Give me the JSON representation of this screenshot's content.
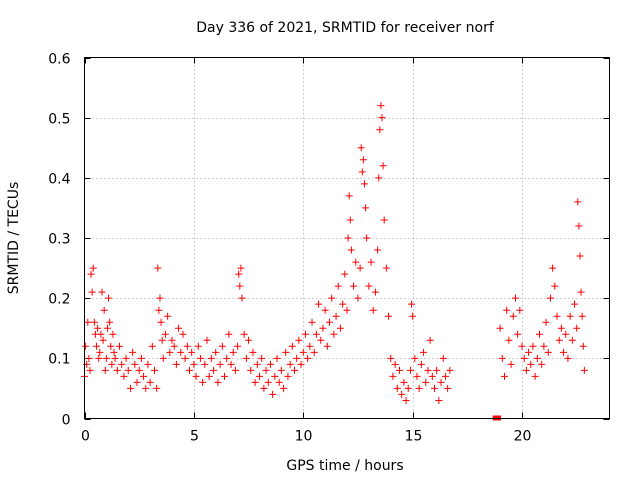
{
  "chart_data": {
    "type": "scatter",
    "title": "Day 336 of 2021, SRMTID for receiver norf",
    "xlabel": "GPS time / hours",
    "ylabel": "SRMTID / TECUs",
    "xlim": [
      0,
      24
    ],
    "ylim": [
      0,
      0.6
    ],
    "xticks": [
      0,
      5,
      10,
      15,
      20
    ],
    "xtick_labels": [
      "0",
      "5",
      "10",
      "15",
      "20"
    ],
    "yticks": [
      0,
      0.1,
      0.2,
      0.3,
      0.4,
      0.5,
      0.6
    ],
    "ytick_labels": [
      "0",
      "0.1",
      "0.2",
      "0.3",
      "0.4",
      "0.5",
      "0.6"
    ],
    "grid": true,
    "marker": "+",
    "color": "#ff0000",
    "series": [
      {
        "name": "SRMTID",
        "points": [
          [
            0.0,
            0.07
          ],
          [
            0.05,
            0.12
          ],
          [
            0.1,
            0.09
          ],
          [
            0.15,
            0.16
          ],
          [
            0.2,
            0.1
          ],
          [
            0.25,
            0.08
          ],
          [
            0.3,
            0.24
          ],
          [
            0.35,
            0.21
          ],
          [
            0.4,
            0.25
          ],
          [
            0.45,
            0.16
          ],
          [
            0.5,
            0.14
          ],
          [
            0.55,
            0.12
          ],
          [
            0.6,
            0.15
          ],
          [
            0.65,
            0.1
          ],
          [
            0.7,
            0.11
          ],
          [
            0.75,
            0.14
          ],
          [
            0.8,
            0.21
          ],
          [
            0.85,
            0.13
          ],
          [
            0.9,
            0.18
          ],
          [
            0.95,
            0.08
          ],
          [
            1.0,
            0.1
          ],
          [
            1.05,
            0.15
          ],
          [
            1.1,
            0.2
          ],
          [
            1.15,
            0.16
          ],
          [
            1.2,
            0.12
          ],
          [
            1.25,
            0.09
          ],
          [
            1.3,
            0.14
          ],
          [
            1.35,
            0.11
          ],
          [
            1.4,
            0.1
          ],
          [
            1.5,
            0.08
          ],
          [
            1.6,
            0.12
          ],
          [
            1.7,
            0.09
          ],
          [
            1.8,
            0.07
          ],
          [
            1.9,
            0.1
          ],
          [
            2.0,
            0.08
          ],
          [
            2.1,
            0.05
          ],
          [
            2.2,
            0.11
          ],
          [
            2.3,
            0.09
          ],
          [
            2.4,
            0.06
          ],
          [
            2.5,
            0.08
          ],
          [
            2.6,
            0.1
          ],
          [
            2.7,
            0.07
          ],
          [
            2.8,
            0.05
          ],
          [
            2.9,
            0.09
          ],
          [
            3.0,
            0.06
          ],
          [
            3.1,
            0.12
          ],
          [
            3.2,
            0.08
          ],
          [
            3.3,
            0.05
          ],
          [
            3.35,
            0.25
          ],
          [
            3.4,
            0.18
          ],
          [
            3.45,
            0.2
          ],
          [
            3.5,
            0.16
          ],
          [
            3.55,
            0.13
          ],
          [
            3.6,
            0.1
          ],
          [
            3.7,
            0.14
          ],
          [
            3.8,
            0.17
          ],
          [
            3.9,
            0.11
          ],
          [
            4.0,
            0.13
          ],
          [
            4.1,
            0.12
          ],
          [
            4.2,
            0.09
          ],
          [
            4.3,
            0.15
          ],
          [
            4.4,
            0.11
          ],
          [
            4.5,
            0.14
          ],
          [
            4.6,
            0.1
          ],
          [
            4.7,
            0.12
          ],
          [
            4.8,
            0.08
          ],
          [
            4.9,
            0.11
          ],
          [
            5.0,
            0.09
          ],
          [
            5.1,
            0.07
          ],
          [
            5.2,
            0.12
          ],
          [
            5.3,
            0.1
          ],
          [
            5.4,
            0.06
          ],
          [
            5.5,
            0.09
          ],
          [
            5.6,
            0.13
          ],
          [
            5.7,
            0.07
          ],
          [
            5.8,
            0.1
          ],
          [
            5.9,
            0.08
          ],
          [
            6.0,
            0.11
          ],
          [
            6.1,
            0.06
          ],
          [
            6.2,
            0.09
          ],
          [
            6.3,
            0.12
          ],
          [
            6.4,
            0.07
          ],
          [
            6.5,
            0.1
          ],
          [
            6.6,
            0.14
          ],
          [
            6.7,
            0.09
          ],
          [
            6.8,
            0.11
          ],
          [
            6.9,
            0.08
          ],
          [
            7.0,
            0.12
          ],
          [
            7.05,
            0.24
          ],
          [
            7.1,
            0.22
          ],
          [
            7.15,
            0.25
          ],
          [
            7.2,
            0.2
          ],
          [
            7.3,
            0.14
          ],
          [
            7.4,
            0.1
          ],
          [
            7.5,
            0.13
          ],
          [
            7.6,
            0.08
          ],
          [
            7.7,
            0.11
          ],
          [
            7.8,
            0.06
          ],
          [
            7.9,
            0.09
          ],
          [
            8.0,
            0.07
          ],
          [
            8.1,
            0.1
          ],
          [
            8.2,
            0.05
          ],
          [
            8.3,
            0.08
          ],
          [
            8.4,
            0.06
          ],
          [
            8.5,
            0.09
          ],
          [
            8.6,
            0.04
          ],
          [
            8.7,
            0.07
          ],
          [
            8.8,
            0.1
          ],
          [
            8.9,
            0.06
          ],
          [
            9.0,
            0.08
          ],
          [
            9.1,
            0.05
          ],
          [
            9.2,
            0.11
          ],
          [
            9.3,
            0.07
          ],
          [
            9.4,
            0.09
          ],
          [
            9.5,
            0.12
          ],
          [
            9.6,
            0.08
          ],
          [
            9.7,
            0.1
          ],
          [
            9.8,
            0.13
          ],
          [
            9.9,
            0.09
          ],
          [
            10.0,
            0.11
          ],
          [
            10.1,
            0.14
          ],
          [
            10.2,
            0.1
          ],
          [
            10.3,
            0.12
          ],
          [
            10.4,
            0.16
          ],
          [
            10.5,
            0.11
          ],
          [
            10.6,
            0.14
          ],
          [
            10.7,
            0.19
          ],
          [
            10.8,
            0.13
          ],
          [
            10.9,
            0.15
          ],
          [
            11.0,
            0.18
          ],
          [
            11.1,
            0.12
          ],
          [
            11.2,
            0.16
          ],
          [
            11.3,
            0.2
          ],
          [
            11.4,
            0.14
          ],
          [
            11.5,
            0.17
          ],
          [
            11.6,
            0.22
          ],
          [
            11.7,
            0.15
          ],
          [
            11.8,
            0.19
          ],
          [
            11.9,
            0.24
          ],
          [
            12.0,
            0.18
          ],
          [
            12.05,
            0.3
          ],
          [
            12.1,
            0.37
          ],
          [
            12.15,
            0.33
          ],
          [
            12.2,
            0.28
          ],
          [
            12.3,
            0.22
          ],
          [
            12.4,
            0.26
          ],
          [
            12.5,
            0.2
          ],
          [
            12.6,
            0.25
          ],
          [
            12.65,
            0.45
          ],
          [
            12.7,
            0.41
          ],
          [
            12.75,
            0.43
          ],
          [
            12.8,
            0.39
          ],
          [
            12.85,
            0.35
          ],
          [
            12.9,
            0.3
          ],
          [
            13.0,
            0.22
          ],
          [
            13.1,
            0.26
          ],
          [
            13.2,
            0.18
          ],
          [
            13.3,
            0.21
          ],
          [
            13.4,
            0.28
          ],
          [
            13.45,
            0.4
          ],
          [
            13.5,
            0.48
          ],
          [
            13.55,
            0.52
          ],
          [
            13.6,
            0.5
          ],
          [
            13.65,
            0.42
          ],
          [
            13.7,
            0.33
          ],
          [
            13.8,
            0.25
          ],
          [
            13.9,
            0.17
          ],
          [
            14.0,
            0.1
          ],
          [
            14.1,
            0.07
          ],
          [
            14.2,
            0.09
          ],
          [
            14.3,
            0.05
          ],
          [
            14.4,
            0.08
          ],
          [
            14.5,
            0.04
          ],
          [
            14.6,
            0.06
          ],
          [
            14.7,
            0.03
          ],
          [
            14.8,
            0.05
          ],
          [
            14.9,
            0.08
          ],
          [
            14.95,
            0.19
          ],
          [
            15.0,
            0.17
          ],
          [
            15.1,
            0.1
          ],
          [
            15.2,
            0.07
          ],
          [
            15.3,
            0.05
          ],
          [
            15.4,
            0.09
          ],
          [
            15.5,
            0.11
          ],
          [
            15.6,
            0.06
          ],
          [
            15.7,
            0.08
          ],
          [
            15.8,
            0.13
          ],
          [
            15.9,
            0.07
          ],
          [
            16.0,
            0.05
          ],
          [
            16.1,
            0.08
          ],
          [
            16.2,
            0.03
          ],
          [
            16.3,
            0.06
          ],
          [
            16.4,
            0.1
          ],
          [
            16.5,
            0.07
          ],
          [
            16.6,
            0.05
          ],
          [
            16.7,
            0.08
          ],
          [
            19.0,
            0.15
          ],
          [
            19.1,
            0.1
          ],
          [
            19.2,
            0.07
          ],
          [
            19.3,
            0.18
          ],
          [
            19.4,
            0.13
          ],
          [
            19.5,
            0.09
          ],
          [
            19.6,
            0.17
          ],
          [
            19.7,
            0.2
          ],
          [
            19.8,
            0.14
          ],
          [
            19.9,
            0.18
          ],
          [
            20.0,
            0.12
          ],
          [
            20.1,
            0.1
          ],
          [
            20.2,
            0.08
          ],
          [
            20.3,
            0.11
          ],
          [
            20.4,
            0.09
          ],
          [
            20.5,
            0.12
          ],
          [
            20.6,
            0.07
          ],
          [
            20.7,
            0.1
          ],
          [
            20.8,
            0.14
          ],
          [
            20.9,
            0.09
          ],
          [
            21.0,
            0.12
          ],
          [
            21.1,
            0.16
          ],
          [
            21.2,
            0.11
          ],
          [
            21.3,
            0.2
          ],
          [
            21.4,
            0.25
          ],
          [
            21.5,
            0.22
          ],
          [
            21.6,
            0.17
          ],
          [
            21.7,
            0.13
          ],
          [
            21.8,
            0.15
          ],
          [
            21.9,
            0.11
          ],
          [
            22.0,
            0.14
          ],
          [
            22.1,
            0.1
          ],
          [
            22.2,
            0.17
          ],
          [
            22.3,
            0.13
          ],
          [
            22.4,
            0.19
          ],
          [
            22.5,
            0.15
          ],
          [
            22.55,
            0.36
          ],
          [
            22.6,
            0.32
          ],
          [
            22.65,
            0.27
          ],
          [
            22.7,
            0.21
          ],
          [
            22.75,
            0.17
          ],
          [
            22.8,
            0.12
          ],
          [
            22.85,
            0.08
          ]
        ]
      }
    ],
    "artifact_points": [
      [
        18.8,
        0.0
      ],
      [
        18.9,
        0.0
      ]
    ]
  }
}
